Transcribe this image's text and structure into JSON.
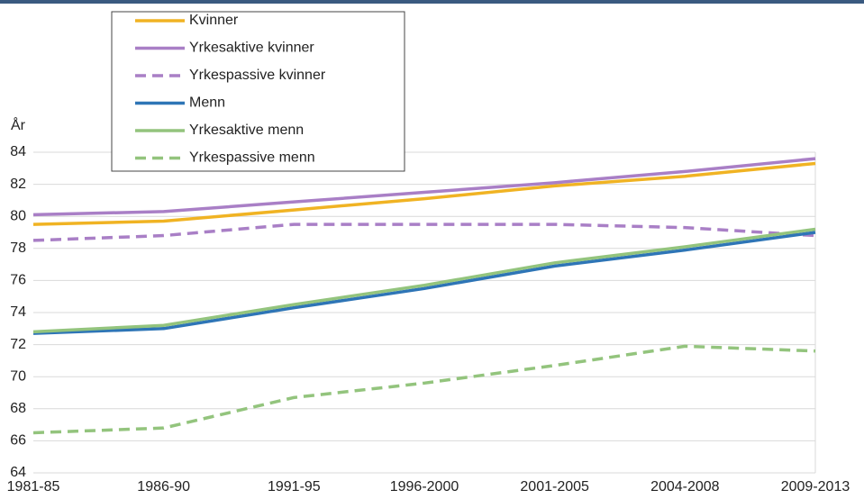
{
  "chart_data": {
    "type": "line",
    "y_label": "År",
    "categories": [
      "1981-85",
      "1986-90",
      "1991-95",
      "1996-2000",
      "2001-2005",
      "2004-2008",
      "2009-2013"
    ],
    "series": [
      {
        "name": "Kvinner",
        "color": "#f0b323",
        "dashed": false,
        "values": [
          79.5,
          79.7,
          80.4,
          81.1,
          81.9,
          82.5,
          83.3
        ]
      },
      {
        "name": "Yrkesaktive kvinner",
        "color": "#a97fc6",
        "dashed": false,
        "values": [
          80.1,
          80.3,
          80.9,
          81.5,
          82.1,
          82.8,
          83.6
        ]
      },
      {
        "name": "Yrkespassive kvinner",
        "color": "#a97fc6",
        "dashed": true,
        "values": [
          78.5,
          78.8,
          79.5,
          79.5,
          79.5,
          79.3,
          78.8
        ]
      },
      {
        "name": "Menn",
        "color": "#2e75b6",
        "dashed": false,
        "values": [
          72.7,
          73.0,
          74.3,
          75.5,
          76.9,
          77.9,
          79.0
        ]
      },
      {
        "name": "Yrkesaktive menn",
        "color": "#93c47d",
        "dashed": false,
        "values": [
          72.8,
          73.2,
          74.5,
          75.7,
          77.1,
          78.1,
          79.2
        ]
      },
      {
        "name": "Yrkespassive menn",
        "color": "#93c47d",
        "dashed": true,
        "values": [
          66.5,
          66.8,
          68.7,
          69.6,
          70.7,
          71.9,
          71.6
        ]
      }
    ],
    "ylim": [
      64,
      84
    ],
    "yticks": [
      64,
      66,
      68,
      70,
      72,
      74,
      76,
      78,
      80,
      82,
      84
    ],
    "grid": true
  }
}
